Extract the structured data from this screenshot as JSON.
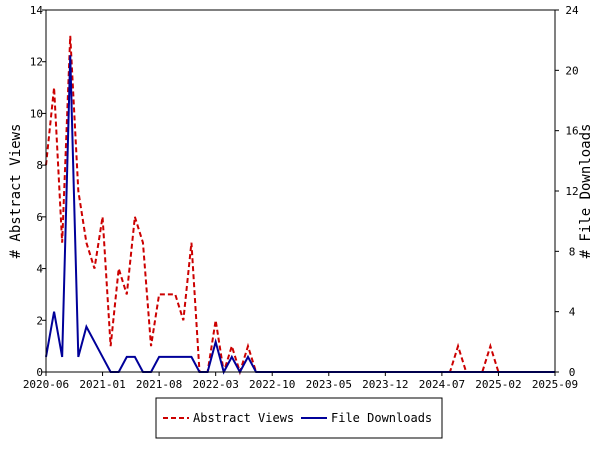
{
  "chart_data": {
    "type": "line",
    "title": "",
    "xlabel": "",
    "ylabel_left": "# Abstract Views",
    "ylabel_right": "# File Downloads",
    "x_tick_labels": [
      "2020-06",
      "2021-01",
      "2021-08",
      "2022-03",
      "2022-10",
      "2023-05",
      "2023-12",
      "2024-07",
      "2025-02",
      "2025-09"
    ],
    "y_left_ticks": [
      0,
      2,
      4,
      6,
      8,
      10,
      12,
      14
    ],
    "y_right_ticks": [
      0,
      4,
      8,
      12,
      16,
      20,
      24
    ],
    "ylim_left": [
      0,
      14
    ],
    "ylim_right": [
      0,
      24
    ],
    "xlim": [
      "2020-06",
      "2025-09"
    ],
    "legend_position": "bottom",
    "grid": false,
    "series": [
      {
        "name": "Abstract Views",
        "axis": "left",
        "color": "#cc0000",
        "style": "dashed",
        "points": [
          [
            "2020-06",
            8
          ],
          [
            "2020-07",
            11
          ],
          [
            "2020-08",
            5
          ],
          [
            "2020-09",
            13
          ],
          [
            "2020-10",
            7
          ],
          [
            "2020-11",
            5
          ],
          [
            "2020-12",
            4
          ],
          [
            "2021-01",
            6
          ],
          [
            "2021-02",
            1
          ],
          [
            "2021-03",
            4
          ],
          [
            "2021-04",
            3
          ],
          [
            "2021-05",
            6
          ],
          [
            "2021-06",
            5
          ],
          [
            "2021-07",
            1
          ],
          [
            "2021-08",
            3
          ],
          [
            "2021-09",
            3
          ],
          [
            "2021-10",
            3
          ],
          [
            "2021-11",
            2
          ],
          [
            "2021-12",
            5
          ],
          [
            "2022-01",
            0
          ],
          [
            "2022-02",
            0
          ],
          [
            "2022-03",
            2
          ],
          [
            "2022-04",
            0
          ],
          [
            "2022-05",
            1
          ],
          [
            "2022-06",
            0
          ],
          [
            "2022-07",
            1
          ],
          [
            "2022-08",
            0
          ],
          [
            "2022-09",
            0
          ],
          [
            "2024-08",
            0
          ],
          [
            "2024-09",
            1
          ],
          [
            "2024-10",
            0
          ],
          [
            "2024-12",
            0
          ],
          [
            "2025-01",
            1
          ],
          [
            "2025-02",
            0
          ],
          [
            "2025-09",
            0
          ]
        ]
      },
      {
        "name": "File Downloads",
        "axis": "right",
        "color": "#000099",
        "style": "solid",
        "points": [
          [
            "2020-06",
            1
          ],
          [
            "2020-07",
            4
          ],
          [
            "2020-08",
            1
          ],
          [
            "2020-09",
            21
          ],
          [
            "2020-10",
            1
          ],
          [
            "2020-11",
            3
          ],
          [
            "2020-12",
            2
          ],
          [
            "2021-01",
            1
          ],
          [
            "2021-02",
            0
          ],
          [
            "2021-03",
            0
          ],
          [
            "2021-04",
            1
          ],
          [
            "2021-05",
            1
          ],
          [
            "2021-06",
            0
          ],
          [
            "2021-07",
            0
          ],
          [
            "2021-08",
            1
          ],
          [
            "2021-09",
            1
          ],
          [
            "2021-10",
            1
          ],
          [
            "2021-11",
            1
          ],
          [
            "2021-12",
            1
          ],
          [
            "2022-01",
            0
          ],
          [
            "2022-02",
            0
          ],
          [
            "2022-03",
            2
          ],
          [
            "2022-04",
            0
          ],
          [
            "2022-05",
            1
          ],
          [
            "2022-06",
            0
          ],
          [
            "2022-07",
            1
          ],
          [
            "2022-08",
            0
          ],
          [
            "2025-09",
            0
          ]
        ]
      }
    ]
  }
}
